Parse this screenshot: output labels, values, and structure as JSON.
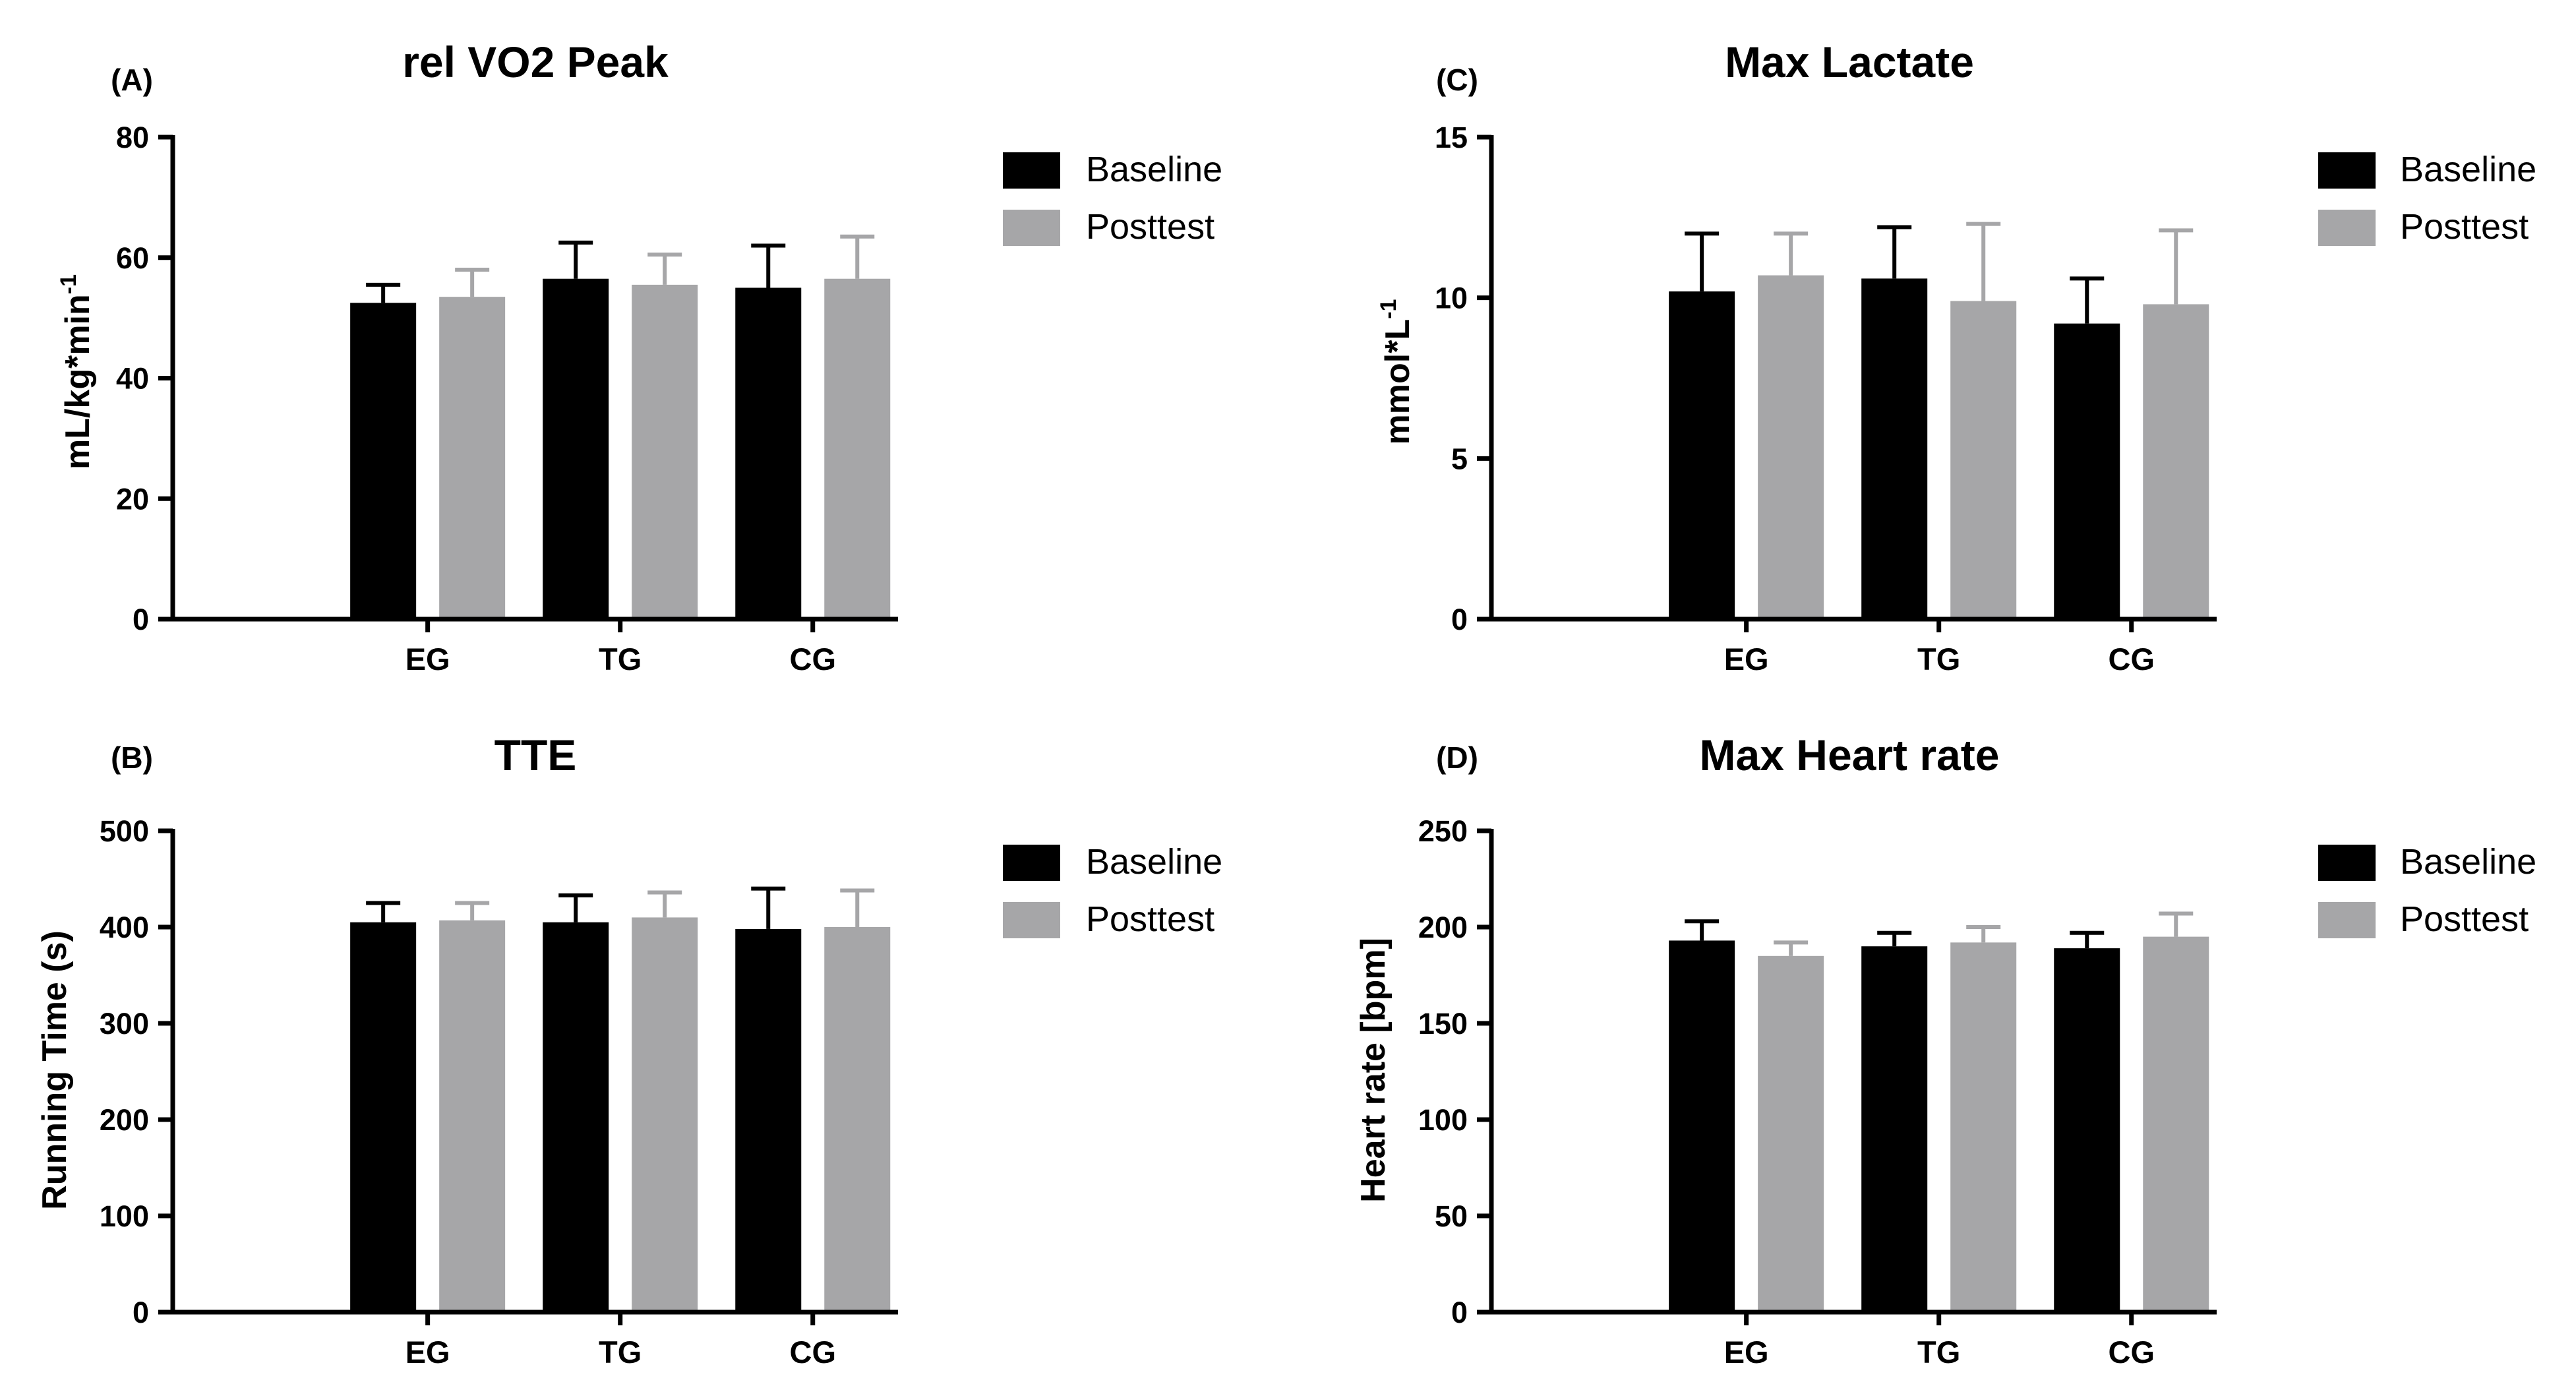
{
  "legend": {
    "baseline": "Baseline",
    "posttest": "Posttest"
  },
  "colors": {
    "baseline": "#000000",
    "posttest": "#a6a6a8",
    "axis": "#000000"
  },
  "chart_data": [
    {
      "panel": "(A)",
      "type": "bar",
      "title": "rel VO2 Peak",
      "xlabel": "",
      "ylabel": "mL/kg*min",
      "ylabel_sup": "-1",
      "ylim": [
        0,
        80
      ],
      "yticks": [
        0,
        20,
        40,
        60,
        80
      ],
      "categories": [
        "EG",
        "TG",
        "CG"
      ],
      "series": [
        {
          "name": "Baseline",
          "values": [
            52.5,
            56.5,
            55
          ],
          "errors": [
            3,
            6,
            7
          ]
        },
        {
          "name": "Posttest",
          "values": [
            53.5,
            55.5,
            56.5
          ],
          "errors": [
            4.5,
            5,
            7
          ]
        }
      ]
    },
    {
      "panel": "(C)",
      "type": "bar",
      "title": "Max Lactate",
      "xlabel": "",
      "ylabel": "mmol*L",
      "ylabel_sup": "-1",
      "ylim": [
        0,
        15
      ],
      "yticks": [
        0,
        5,
        10,
        15
      ],
      "categories": [
        "EG",
        "TG",
        "CG"
      ],
      "series": [
        {
          "name": "Baseline",
          "values": [
            10.2,
            10.6,
            9.2
          ],
          "errors": [
            1.8,
            1.6,
            1.4
          ]
        },
        {
          "name": "Posttest",
          "values": [
            10.7,
            9.9,
            9.8
          ],
          "errors": [
            1.3,
            2.4,
            2.3
          ]
        }
      ]
    },
    {
      "panel": "(B)",
      "type": "bar",
      "title": "TTE",
      "xlabel": "",
      "ylabel": "Running Time (s)",
      "ylabel_sup": "",
      "ylim": [
        0,
        500
      ],
      "yticks": [
        0,
        100,
        200,
        300,
        400,
        500
      ],
      "categories": [
        "EG",
        "TG",
        "CG"
      ],
      "series": [
        {
          "name": "Baseline",
          "values": [
            405,
            405,
            398
          ],
          "errors": [
            20,
            28,
            42
          ]
        },
        {
          "name": "Posttest",
          "values": [
            407,
            410,
            400
          ],
          "errors": [
            18,
            26,
            38
          ]
        }
      ]
    },
    {
      "panel": "(D)",
      "type": "bar",
      "title": "Max Heart rate",
      "xlabel": "",
      "ylabel": "Heart rate [bpm]",
      "ylabel_sup": "",
      "ylim": [
        0,
        250
      ],
      "yticks": [
        0,
        50,
        100,
        150,
        200,
        250
      ],
      "categories": [
        "EG",
        "TG",
        "CG"
      ],
      "series": [
        {
          "name": "Baseline",
          "values": [
            193,
            190,
            189
          ],
          "errors": [
            10,
            7,
            8
          ]
        },
        {
          "name": "Posttest",
          "values": [
            185,
            192,
            195
          ],
          "errors": [
            7,
            8,
            12
          ]
        }
      ]
    }
  ]
}
